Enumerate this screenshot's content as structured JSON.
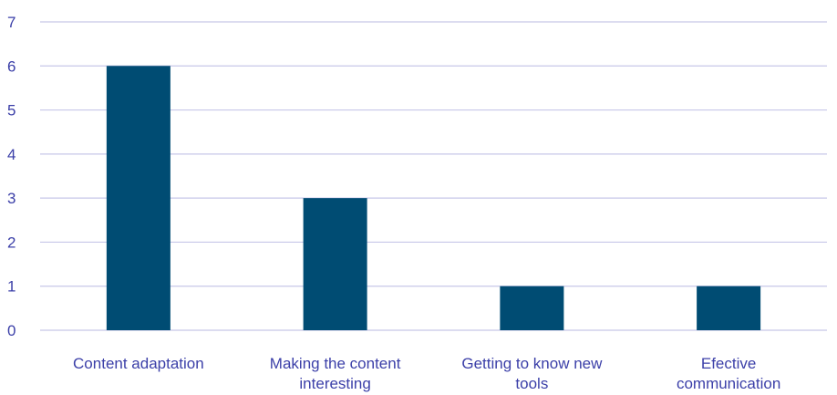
{
  "chart_data": {
    "type": "bar",
    "categories": [
      [
        "Content adaptation"
      ],
      [
        "Making the content",
        "interesting"
      ],
      [
        "Getting to know new",
        "tools"
      ],
      [
        "Efective",
        "communication"
      ]
    ],
    "values": [
      6,
      3,
      1,
      1
    ],
    "ylim": [
      0,
      7
    ],
    "yticks": [
      0,
      1,
      2,
      3,
      4,
      5,
      6,
      7
    ],
    "grid": true,
    "legend": "none",
    "colors": {
      "bar": "#004c73",
      "grid": "#c7c7e8",
      "label": "#3b3fa8"
    }
  }
}
